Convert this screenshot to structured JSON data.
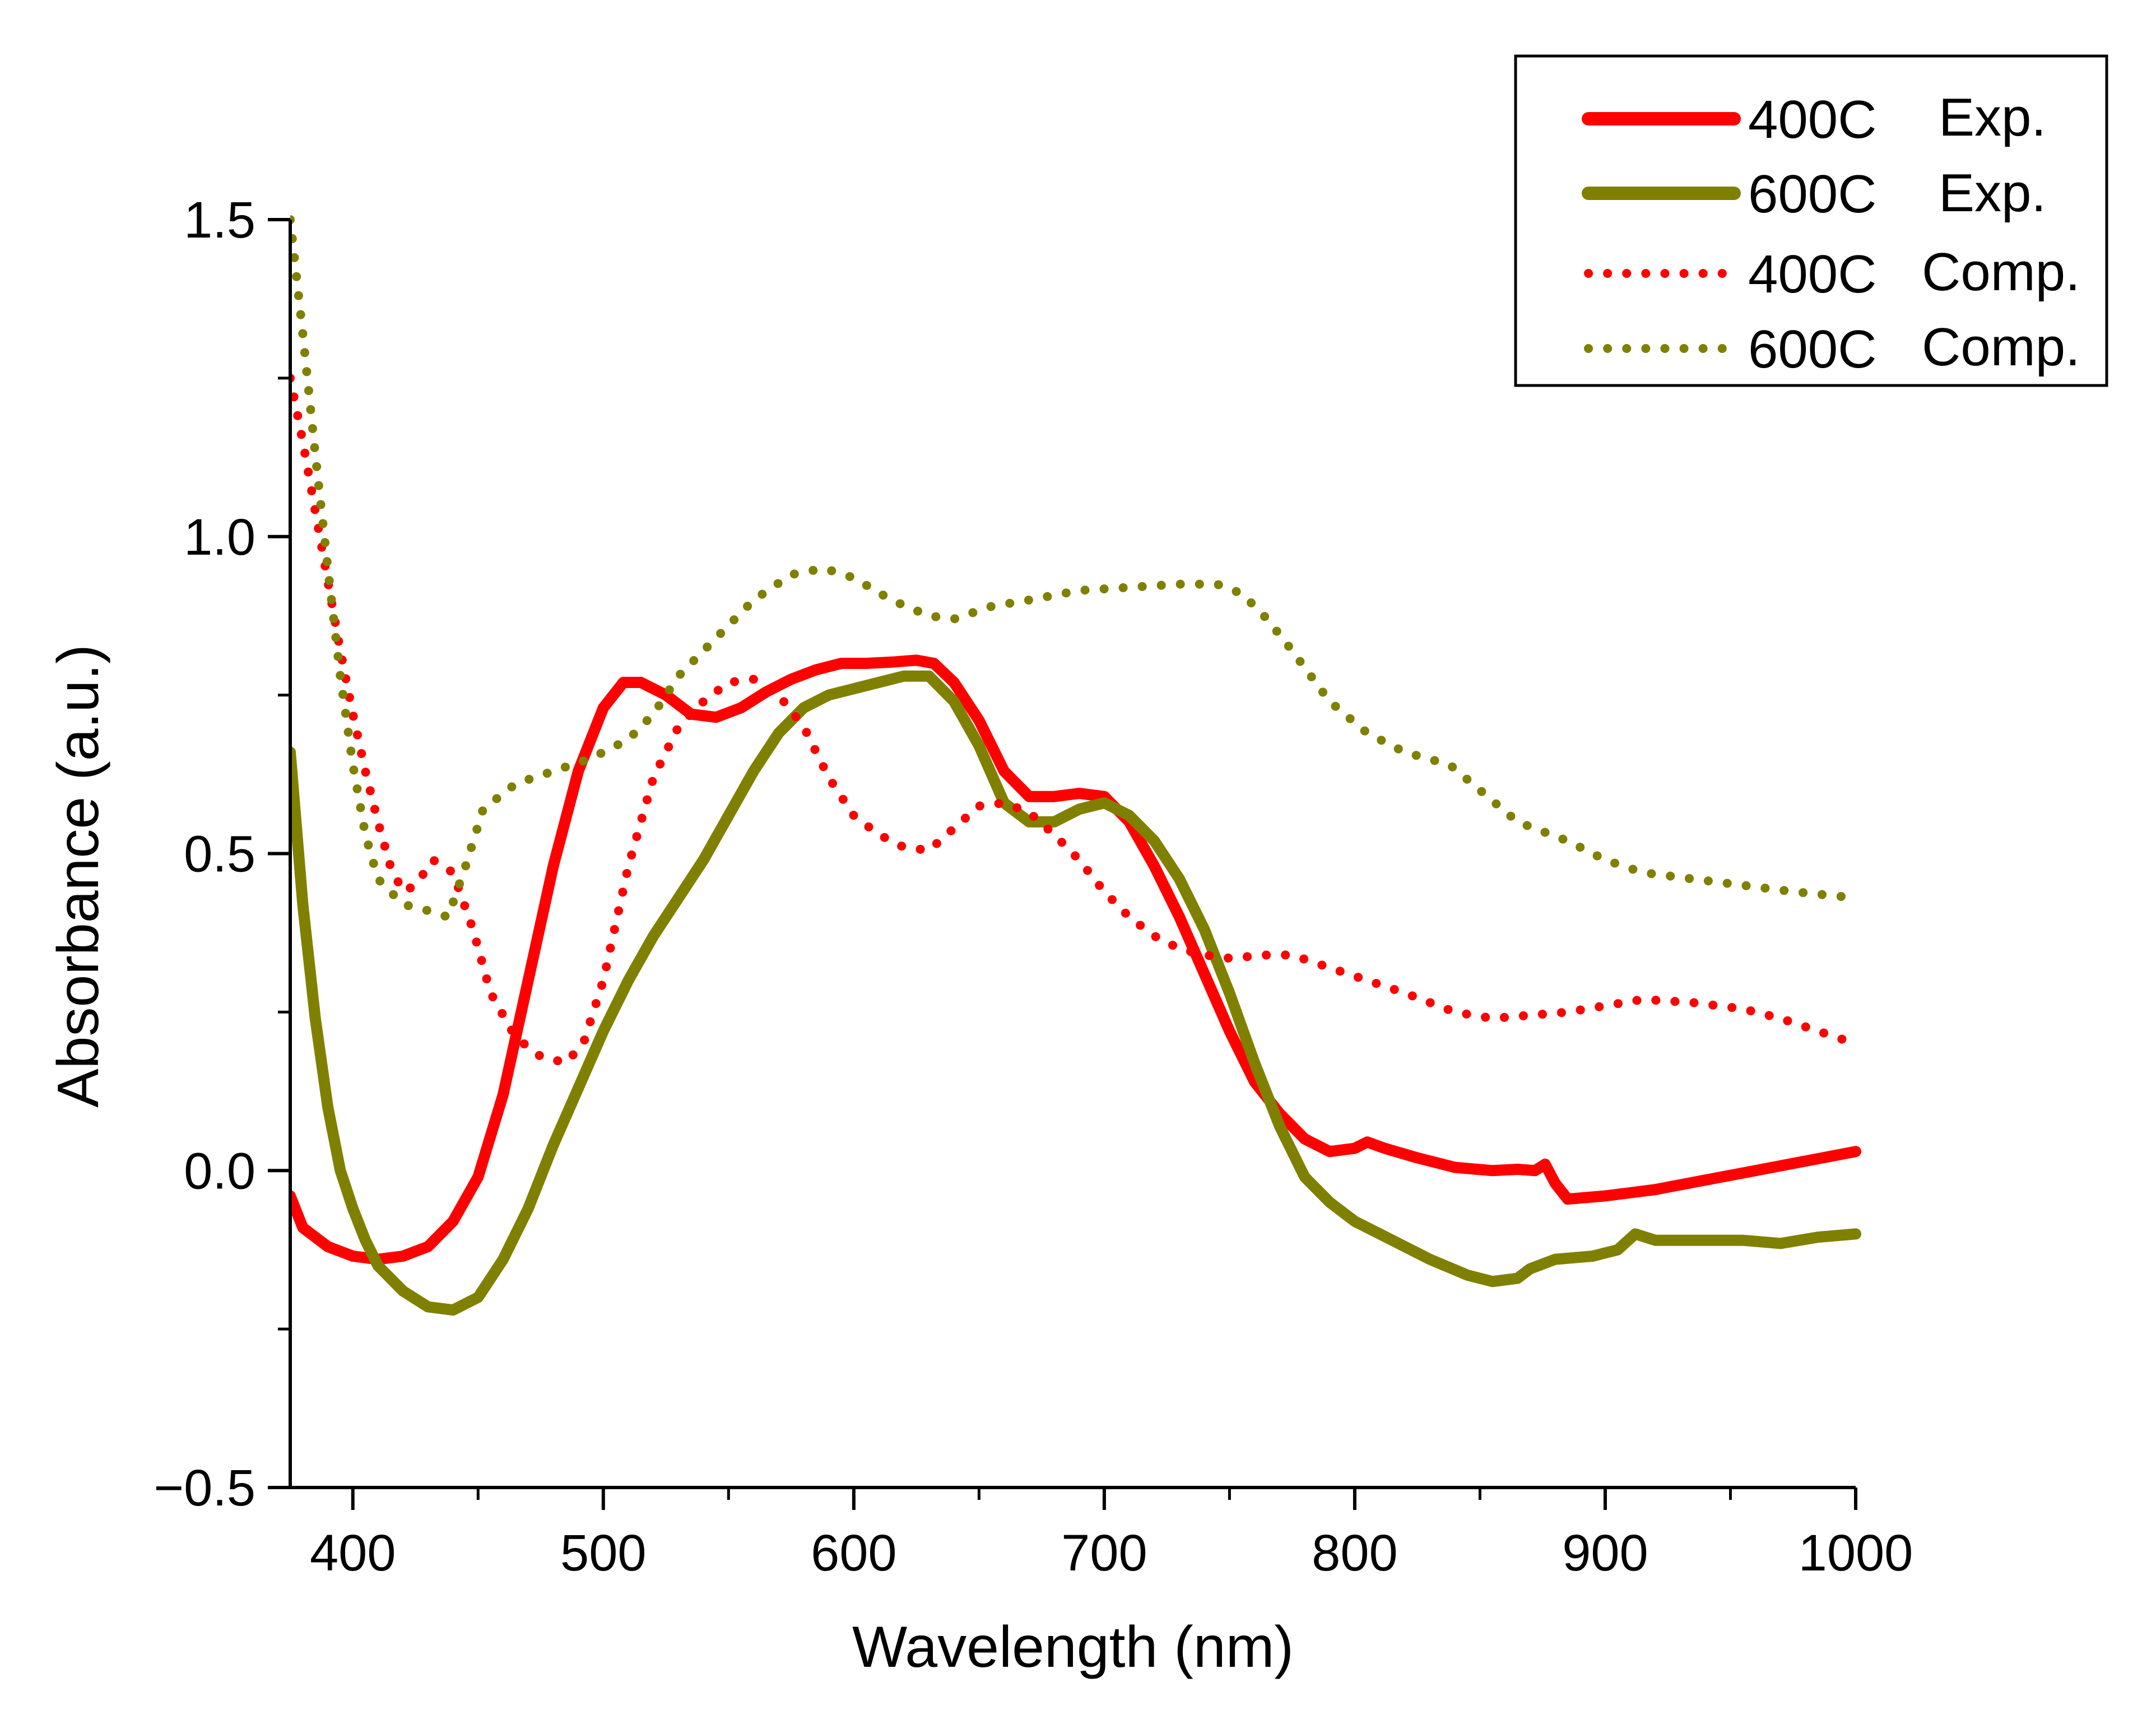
{
  "chart_data": {
    "type": "line",
    "title": "",
    "xlabel": "Wavelength (nm)",
    "ylabel": "Absorbance (a.u.)",
    "xlim": [
      375,
      1000
    ],
    "ylim": [
      -0.5,
      1.5
    ],
    "xticks": [
      400,
      500,
      600,
      700,
      800,
      900,
      1000
    ],
    "xtick_labels": [
      "400",
      "500",
      "600",
      "700",
      "800",
      "900",
      "1000"
    ],
    "yticks": [
      -0.5,
      0.0,
      0.5,
      1.0,
      1.5
    ],
    "ytick_labels": [
      "−0.5",
      "0.0",
      "0.5",
      "1.0",
      "1.5"
    ],
    "grid": false,
    "legend": {
      "position": "top-right",
      "boxed": true
    },
    "series": [
      {
        "name": "400C Exp.",
        "label_main": "400C",
        "label_suffix": "Exp.",
        "color": "#ff0000",
        "style": "solid",
        "points": [
          [
            375,
            -0.04
          ],
          [
            380,
            -0.09
          ],
          [
            390,
            -0.12
          ],
          [
            400,
            -0.135
          ],
          [
            410,
            -0.14
          ],
          [
            420,
            -0.135
          ],
          [
            430,
            -0.12
          ],
          [
            440,
            -0.08
          ],
          [
            450,
            -0.01
          ],
          [
            460,
            0.12
          ],
          [
            470,
            0.3
          ],
          [
            480,
            0.48
          ],
          [
            490,
            0.63
          ],
          [
            500,
            0.73
          ],
          [
            508,
            0.77
          ],
          [
            515,
            0.77
          ],
          [
            525,
            0.75
          ],
          [
            535,
            0.72
          ],
          [
            545,
            0.715
          ],
          [
            555,
            0.73
          ],
          [
            565,
            0.755
          ],
          [
            575,
            0.775
          ],
          [
            585,
            0.79
          ],
          [
            595,
            0.8
          ],
          [
            605,
            0.8
          ],
          [
            615,
            0.802
          ],
          [
            625,
            0.805
          ],
          [
            632,
            0.8
          ],
          [
            640,
            0.77
          ],
          [
            650,
            0.71
          ],
          [
            660,
            0.63
          ],
          [
            670,
            0.59
          ],
          [
            680,
            0.59
          ],
          [
            690,
            0.595
          ],
          [
            700,
            0.59
          ],
          [
            710,
            0.55
          ],
          [
            720,
            0.48
          ],
          [
            730,
            0.4
          ],
          [
            740,
            0.31
          ],
          [
            750,
            0.22
          ],
          [
            760,
            0.14
          ],
          [
            770,
            0.09
          ],
          [
            780,
            0.05
          ],
          [
            790,
            0.03
          ],
          [
            800,
            0.035
          ],
          [
            805,
            0.045
          ],
          [
            812,
            0.035
          ],
          [
            825,
            0.02
          ],
          [
            840,
            0.005
          ],
          [
            855,
            0.0
          ],
          [
            865,
            0.002
          ],
          [
            872,
            0.0
          ],
          [
            876,
            0.01
          ],
          [
            880,
            -0.02
          ],
          [
            885,
            -0.045
          ],
          [
            900,
            -0.04
          ],
          [
            920,
            -0.03
          ],
          [
            940,
            -0.015
          ],
          [
            960,
            0.0
          ],
          [
            980,
            0.015
          ],
          [
            1000,
            0.03
          ]
        ]
      },
      {
        "name": "600C Exp.",
        "label_main": "600C",
        "label_suffix": "Exp.",
        "color": "#808000",
        "style": "solid",
        "points": [
          [
            375,
            0.66
          ],
          [
            380,
            0.42
          ],
          [
            385,
            0.24
          ],
          [
            390,
            0.1
          ],
          [
            395,
            0.0
          ],
          [
            400,
            -0.06
          ],
          [
            405,
            -0.11
          ],
          [
            410,
            -0.15
          ],
          [
            420,
            -0.19
          ],
          [
            430,
            -0.215
          ],
          [
            440,
            -0.22
          ],
          [
            450,
            -0.2
          ],
          [
            460,
            -0.14
          ],
          [
            470,
            -0.06
          ],
          [
            480,
            0.04
          ],
          [
            490,
            0.13
          ],
          [
            500,
            0.22
          ],
          [
            510,
            0.3
          ],
          [
            520,
            0.37
          ],
          [
            530,
            0.43
          ],
          [
            540,
            0.49
          ],
          [
            550,
            0.56
          ],
          [
            560,
            0.63
          ],
          [
            570,
            0.69
          ],
          [
            580,
            0.73
          ],
          [
            590,
            0.75
          ],
          [
            600,
            0.76
          ],
          [
            610,
            0.77
          ],
          [
            620,
            0.78
          ],
          [
            630,
            0.78
          ],
          [
            640,
            0.74
          ],
          [
            650,
            0.67
          ],
          [
            660,
            0.58
          ],
          [
            670,
            0.55
          ],
          [
            680,
            0.55
          ],
          [
            690,
            0.57
          ],
          [
            700,
            0.58
          ],
          [
            710,
            0.56
          ],
          [
            720,
            0.52
          ],
          [
            730,
            0.46
          ],
          [
            740,
            0.38
          ],
          [
            750,
            0.28
          ],
          [
            760,
            0.17
          ],
          [
            770,
            0.07
          ],
          [
            780,
            -0.01
          ],
          [
            790,
            -0.05
          ],
          [
            800,
            -0.08
          ],
          [
            815,
            -0.11
          ],
          [
            830,
            -0.14
          ],
          [
            845,
            -0.165
          ],
          [
            855,
            -0.175
          ],
          [
            865,
            -0.17
          ],
          [
            870,
            -0.155
          ],
          [
            880,
            -0.14
          ],
          [
            895,
            -0.135
          ],
          [
            905,
            -0.125
          ],
          [
            912,
            -0.1
          ],
          [
            920,
            -0.11
          ],
          [
            935,
            -0.11
          ],
          [
            955,
            -0.11
          ],
          [
            970,
            -0.115
          ],
          [
            985,
            -0.105
          ],
          [
            1000,
            -0.1
          ]
        ]
      },
      {
        "name": "400C Comp.",
        "label_main": "400C",
        "label_suffix": "Comp.",
        "color": "#ff0000",
        "style": "dotted",
        "points": [
          [
            375,
            1.25
          ],
          [
            380,
            1.15
          ],
          [
            385,
            1.04
          ],
          [
            390,
            0.93
          ],
          [
            395,
            0.82
          ],
          [
            400,
            0.72
          ],
          [
            405,
            0.63
          ],
          [
            410,
            0.55
          ],
          [
            415,
            0.48
          ],
          [
            420,
            0.44
          ],
          [
            425,
            0.45
          ],
          [
            432,
            0.49
          ],
          [
            440,
            0.47
          ],
          [
            448,
            0.38
          ],
          [
            455,
            0.28
          ],
          [
            465,
            0.21
          ],
          [
            475,
            0.18
          ],
          [
            485,
            0.17
          ],
          [
            492,
            0.2
          ],
          [
            500,
            0.3
          ],
          [
            510,
            0.48
          ],
          [
            520,
            0.62
          ],
          [
            530,
            0.7
          ],
          [
            540,
            0.74
          ],
          [
            550,
            0.77
          ],
          [
            560,
            0.775
          ],
          [
            570,
            0.75
          ],
          [
            580,
            0.7
          ],
          [
            590,
            0.62
          ],
          [
            600,
            0.56
          ],
          [
            610,
            0.53
          ],
          [
            620,
            0.51
          ],
          [
            630,
            0.505
          ],
          [
            640,
            0.54
          ],
          [
            650,
            0.575
          ],
          [
            660,
            0.58
          ],
          [
            670,
            0.565
          ],
          [
            680,
            0.53
          ],
          [
            690,
            0.49
          ],
          [
            700,
            0.44
          ],
          [
            710,
            0.4
          ],
          [
            720,
            0.37
          ],
          [
            730,
            0.35
          ],
          [
            740,
            0.34
          ],
          [
            750,
            0.335
          ],
          [
            765,
            0.34
          ],
          [
            775,
            0.34
          ],
          [
            790,
            0.32
          ],
          [
            805,
            0.3
          ],
          [
            820,
            0.28
          ],
          [
            840,
            0.25
          ],
          [
            855,
            0.24
          ],
          [
            870,
            0.245
          ],
          [
            885,
            0.25
          ],
          [
            900,
            0.26
          ],
          [
            915,
            0.27
          ],
          [
            935,
            0.265
          ],
          [
            955,
            0.255
          ],
          [
            970,
            0.24
          ],
          [
            985,
            0.22
          ],
          [
            1000,
            0.2
          ]
        ]
      },
      {
        "name": "600C Comp.",
        "label_main": "600C",
        "label_suffix": "Comp.",
        "color": "#808000",
        "style": "dotted",
        "points": [
          [
            375,
            1.5
          ],
          [
            380,
            1.32
          ],
          [
            385,
            1.13
          ],
          [
            390,
            0.95
          ],
          [
            395,
            0.78
          ],
          [
            400,
            0.64
          ],
          [
            405,
            0.53
          ],
          [
            410,
            0.46
          ],
          [
            420,
            0.42
          ],
          [
            430,
            0.41
          ],
          [
            438,
            0.4
          ],
          [
            445,
            0.48
          ],
          [
            452,
            0.57
          ],
          [
            465,
            0.61
          ],
          [
            480,
            0.63
          ],
          [
            495,
            0.65
          ],
          [
            510,
            0.68
          ],
          [
            520,
            0.72
          ],
          [
            530,
            0.78
          ],
          [
            545,
            0.84
          ],
          [
            560,
            0.9
          ],
          [
            575,
            0.94
          ],
          [
            588,
            0.95
          ],
          [
            600,
            0.935
          ],
          [
            615,
            0.9
          ],
          [
            630,
            0.875
          ],
          [
            640,
            0.87
          ],
          [
            655,
            0.89
          ],
          [
            670,
            0.9
          ],
          [
            690,
            0.915
          ],
          [
            710,
            0.92
          ],
          [
            730,
            0.925
          ],
          [
            745,
            0.925
          ],
          [
            755,
            0.91
          ],
          [
            765,
            0.87
          ],
          [
            775,
            0.82
          ],
          [
            790,
            0.74
          ],
          [
            805,
            0.69
          ],
          [
            820,
            0.66
          ],
          [
            838,
            0.64
          ],
          [
            850,
            0.6
          ],
          [
            865,
            0.55
          ],
          [
            885,
            0.52
          ],
          [
            900,
            0.49
          ],
          [
            915,
            0.47
          ],
          [
            935,
            0.46
          ],
          [
            955,
            0.45
          ],
          [
            975,
            0.44
          ],
          [
            1000,
            0.43
          ]
        ]
      }
    ]
  }
}
